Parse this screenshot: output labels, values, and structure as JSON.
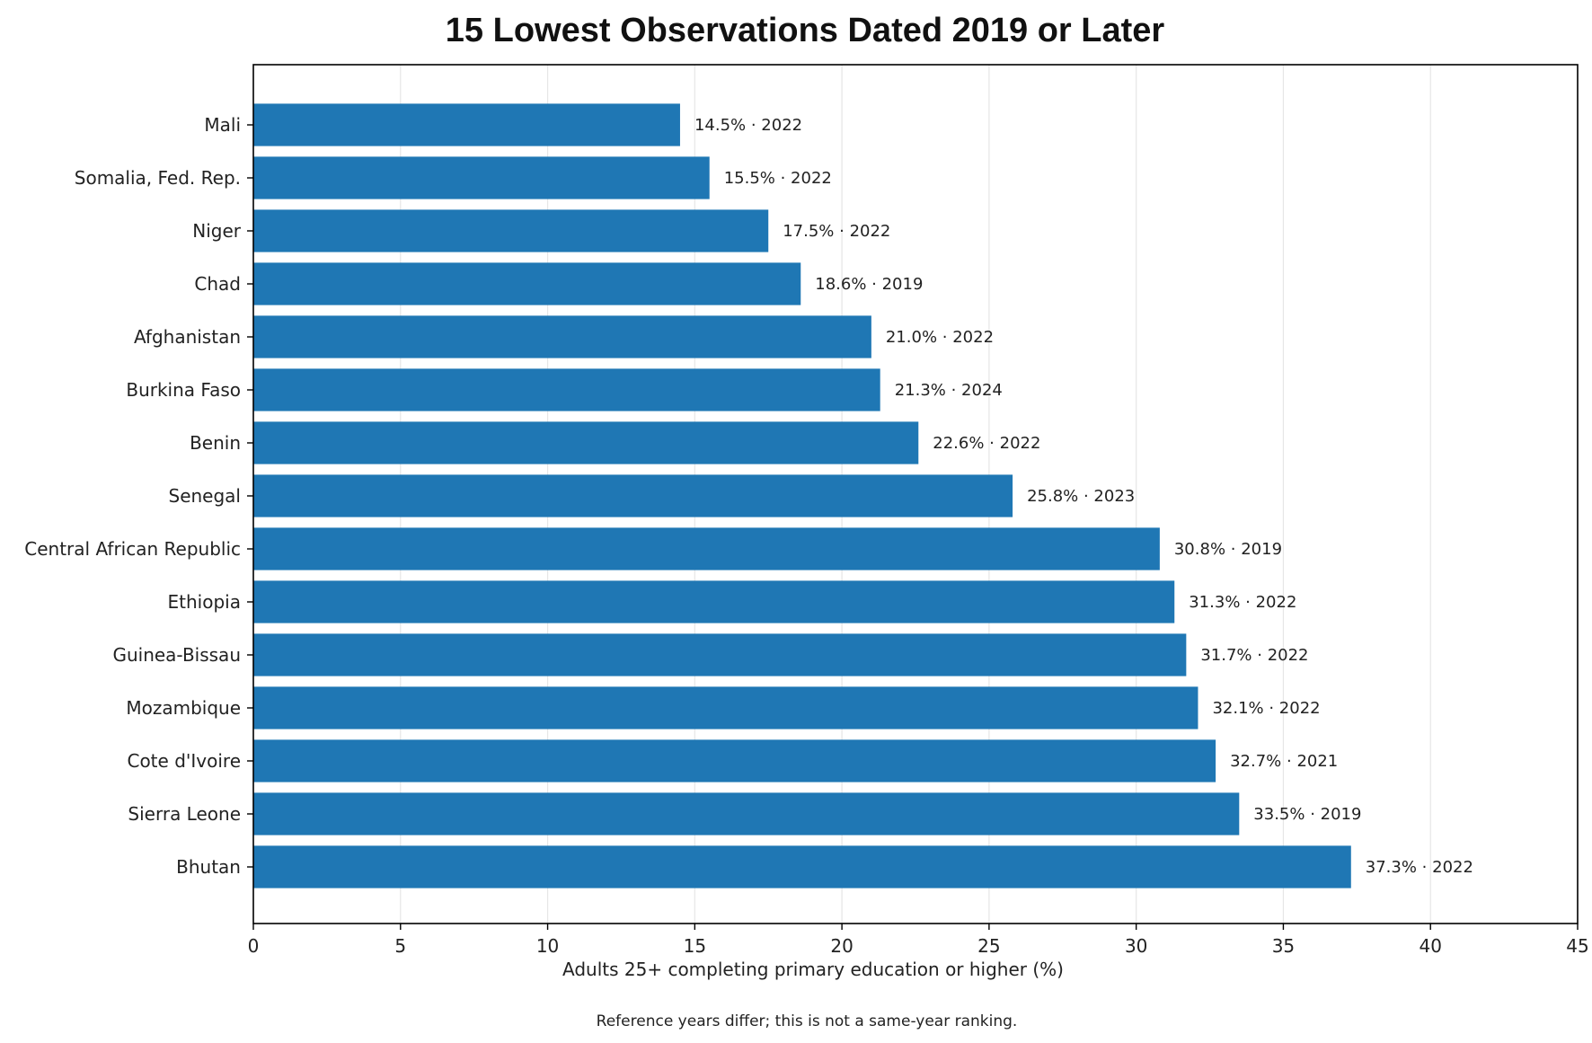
{
  "chart_data": {
    "type": "bar",
    "orientation": "horizontal",
    "title": "15 Lowest Observations Dated 2019 or Later",
    "xlabel": "Adults 25+ completing primary education or higher (%)",
    "ylabel": "",
    "footnote": "Reference years differ; this is not a same-year ranking.",
    "xlim": [
      0,
      45
    ],
    "xticks": [
      0,
      5,
      10,
      15,
      20,
      25,
      30,
      35,
      40,
      45
    ],
    "grid": "vertical",
    "bar_color": "#1f77b4",
    "categories": [
      "Mali",
      "Somalia, Fed. Rep.",
      "Niger",
      "Chad",
      "Afghanistan",
      "Burkina Faso",
      "Benin",
      "Senegal",
      "Central African Republic",
      "Ethiopia",
      "Guinea-Bissau",
      "Mozambique",
      "Cote d'Ivoire",
      "Sierra Leone",
      "Bhutan"
    ],
    "values": [
      14.5,
      15.5,
      17.5,
      18.6,
      21.0,
      21.3,
      22.6,
      25.8,
      30.8,
      31.3,
      31.7,
      32.1,
      32.7,
      33.5,
      37.3
    ],
    "data_labels": [
      "14.5% · 2022",
      "15.5% · 2022",
      "17.5% · 2022",
      "18.6% · 2019",
      "21.0% · 2022",
      "21.3% · 2024",
      "22.6% · 2022",
      "25.8% · 2023",
      "30.8% · 2019",
      "31.3% · 2022",
      "31.7% · 2022",
      "32.1% · 2022",
      "32.7% · 2021",
      "33.5% · 2019",
      "37.3% · 2022"
    ]
  }
}
